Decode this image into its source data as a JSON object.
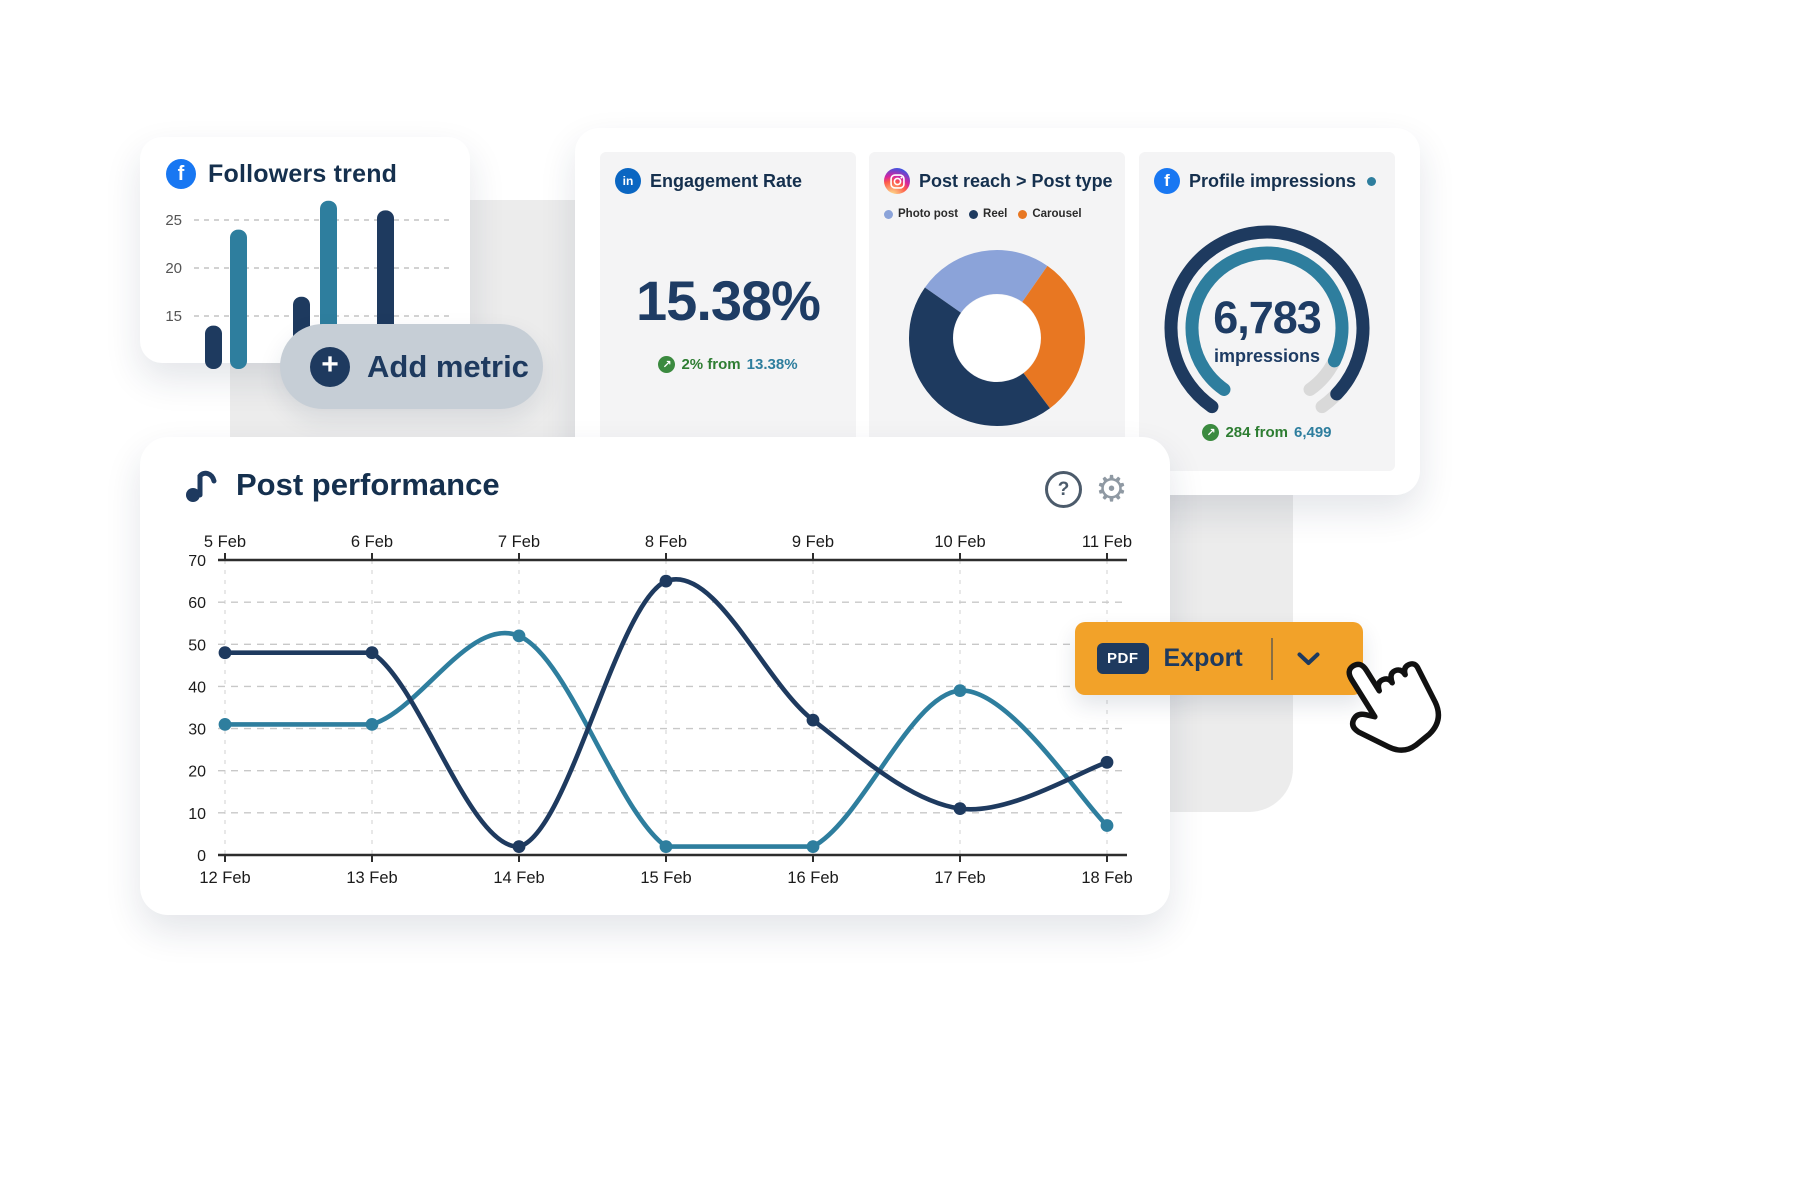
{
  "icons": {
    "facebook_glyph": "f",
    "linkedin_glyph": "in",
    "plus_glyph": "+",
    "trend_up_glyph": "↗",
    "help_glyph": "?",
    "gear_glyph": "⚙"
  },
  "colors": {
    "navy": "#1e3a5f",
    "teal": "#2e7e9e",
    "light_blue": "#8ba3d9",
    "orange": "#e87722",
    "export_orange": "#f2a229",
    "green": "#2e7d32",
    "title_dark": "#15304e",
    "track_gray": "#d9d9d9"
  },
  "followers_card": {
    "title": "Followers trend",
    "chart_data": {
      "type": "bar",
      "yticks": [
        15,
        20,
        25
      ],
      "values": [
        14,
        24,
        17,
        27,
        26
      ],
      "bar_colors": [
        "navy",
        "teal",
        "navy",
        "teal",
        "navy"
      ],
      "ylim": [
        11,
        28
      ]
    }
  },
  "add_metric_button": {
    "label": "Add metric"
  },
  "engagement_card": {
    "title": "Engagement Rate",
    "value": "15.38%",
    "change": {
      "direction": "up",
      "text": "2% from",
      "previous": "13.38%"
    }
  },
  "post_reach_card": {
    "title": "Post reach > Post type",
    "legend": [
      {
        "label": "Photo post",
        "color_key": "light_blue"
      },
      {
        "label": "Reel",
        "color_key": "navy"
      },
      {
        "label": "Carousel",
        "color_key": "orange"
      }
    ],
    "chart_data": {
      "type": "pie",
      "donut": true,
      "start_angle_deg": 305,
      "segments": [
        {
          "label": "Photo post",
          "percent": 25,
          "color_key": "light_blue"
        },
        {
          "label": "Carousel",
          "percent": 30,
          "color_key": "orange"
        },
        {
          "label": "Reel",
          "percent": 45,
          "color_key": "navy"
        }
      ]
    }
  },
  "impressions_card": {
    "title": "Profile impressions",
    "value": "6,783",
    "unit": "impressions",
    "change": {
      "direction": "up",
      "text": "284 from",
      "previous": "6,499"
    },
    "chart_data": {
      "type": "gauge",
      "gap_deg": 70,
      "outer_fill": 0.96,
      "inner_fill": 0.9
    }
  },
  "post_performance_card": {
    "title": "Post performance",
    "chart_data": {
      "type": "line",
      "x_labels_top": [
        "5 Feb",
        "6 Feb",
        "7 Feb",
        "8 Feb",
        "9 Feb",
        "10 Feb",
        "11 Feb"
      ],
      "x_labels_bottom": [
        "12 Feb",
        "13 Feb",
        "14 Feb",
        "15 Feb",
        "16 Feb",
        "17 Feb",
        "18 Feb"
      ],
      "ylim": [
        0,
        70
      ],
      "ytick_step": 10,
      "grid": "dashed",
      "series": [
        {
          "name": "dark-series",
          "color_key": "navy",
          "values": [
            48,
            48,
            2,
            65,
            32,
            11,
            22
          ]
        },
        {
          "name": "light-series",
          "color_key": "teal",
          "values": [
            31,
            31,
            52,
            2,
            2,
            39,
            7
          ]
        }
      ]
    }
  },
  "export_button": {
    "badge": "PDF",
    "label": "Export"
  }
}
